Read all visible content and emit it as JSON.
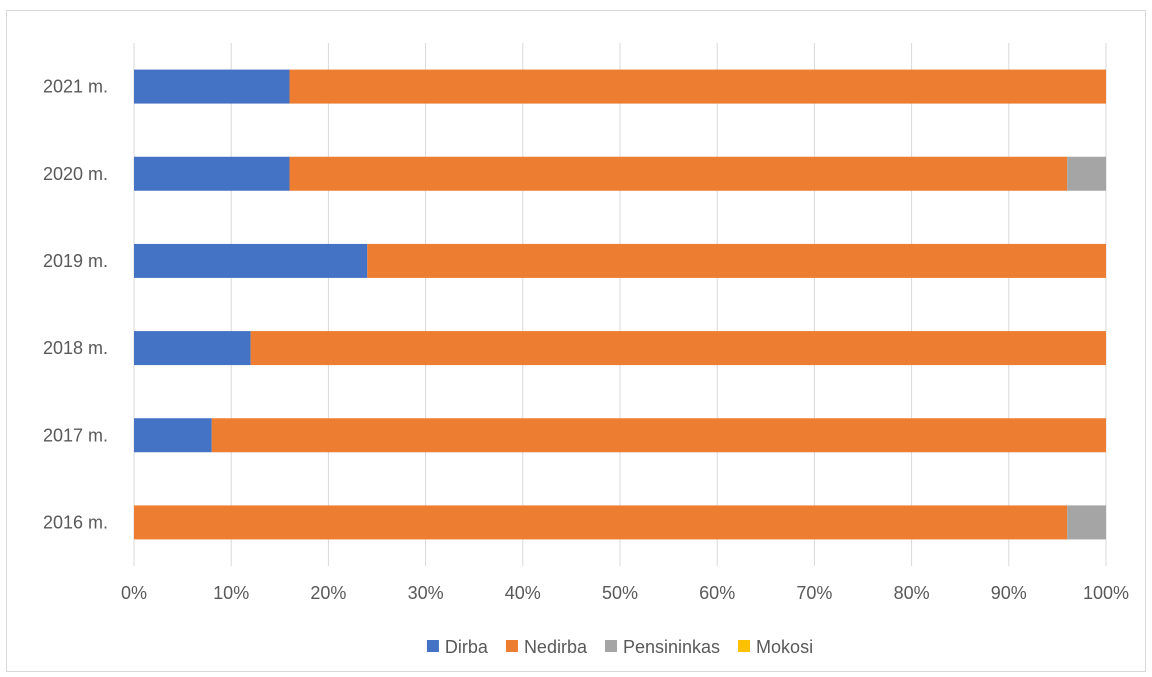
{
  "chart_data": {
    "type": "bar",
    "orientation": "horizontal",
    "stacked": "percent",
    "categories": [
      "2021 m.",
      "2020 m.",
      "2019 m.",
      "2018 m.",
      "2017 m.",
      "2016 m."
    ],
    "series": [
      {
        "name": "Dirba",
        "color": "#4472C4",
        "values": [
          16,
          16,
          24,
          12,
          8,
          0
        ]
      },
      {
        "name": "Nedirba",
        "color": "#ED7D31",
        "values": [
          84,
          80,
          76,
          88,
          92,
          96
        ]
      },
      {
        "name": "Pensininkas",
        "color": "#A5A5A5",
        "values": [
          0,
          4,
          0,
          0,
          0,
          4
        ]
      },
      {
        "name": "Mokosi",
        "color": "#FFC000",
        "values": [
          0,
          0,
          0,
          0,
          0,
          0
        ]
      }
    ],
    "xticks": [
      "0%",
      "10%",
      "20%",
      "30%",
      "40%",
      "50%",
      "60%",
      "70%",
      "80%",
      "90%",
      "100%"
    ],
    "xlim": [
      0,
      100
    ],
    "grid": "vertical",
    "legend": "bottom",
    "title": "",
    "xlabel": "",
    "ylabel": ""
  }
}
